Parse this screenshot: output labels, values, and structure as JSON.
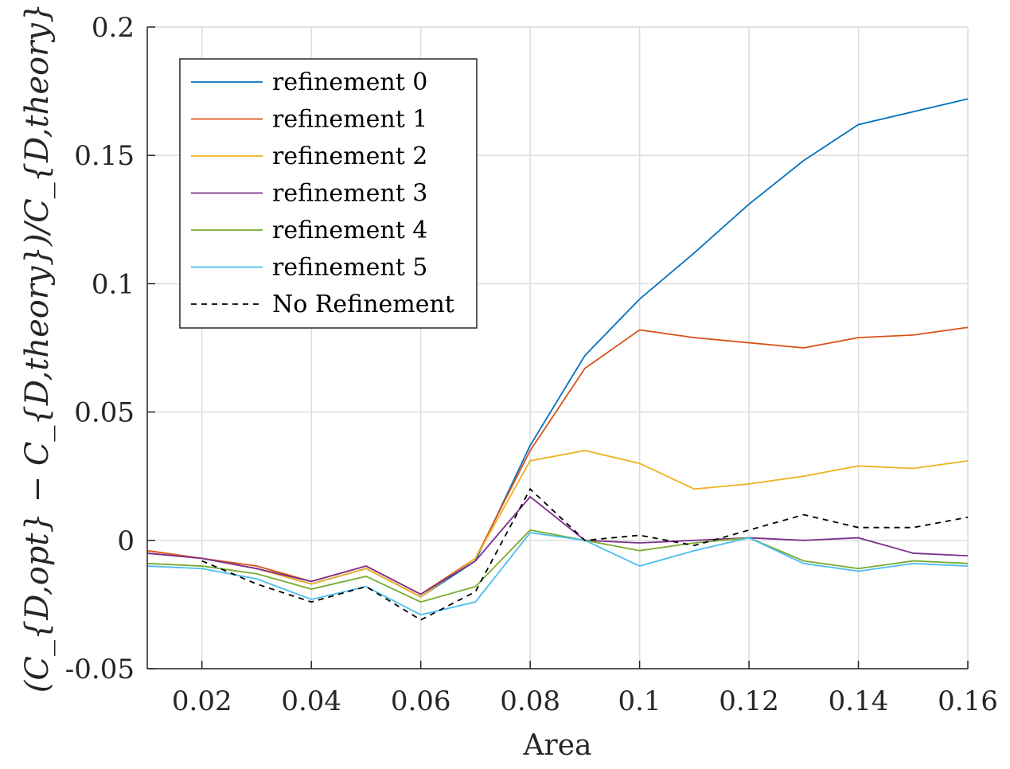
{
  "chart_data": {
    "type": "line",
    "xlabel": "Area",
    "ylabel": "(C_{D,opt} − C_{D,theory})/C_{D,theory}",
    "xlim": [
      0.01,
      0.16
    ],
    "ylim": [
      -0.05,
      0.2
    ],
    "grid": true,
    "legend_position": "top-left",
    "x_ticks": [
      0.02,
      0.04,
      0.06,
      0.08,
      0.1,
      0.12,
      0.14,
      0.16
    ],
    "x_tick_labels": [
      "0.02",
      "0.04",
      "0.06",
      "0.08",
      "0.1",
      "0.12",
      "0.14",
      "0.16"
    ],
    "y_ticks": [
      -0.05,
      0,
      0.05,
      0.1,
      0.15,
      0.2
    ],
    "y_tick_labels": [
      "-0.05",
      "0",
      "0.05",
      "0.1",
      "0.15",
      "0.2"
    ],
    "x": [
      0.01,
      0.02,
      0.03,
      0.04,
      0.05,
      0.06,
      0.07,
      0.08,
      0.09,
      0.1,
      0.11,
      0.12,
      0.13,
      0.14,
      0.15,
      0.16
    ],
    "series": [
      {
        "name": "refinement 0",
        "color": "#0072BD",
        "dash": "solid",
        "values": [
          -0.005,
          -0.007,
          -0.011,
          -0.017,
          -0.011,
          -0.022,
          -0.008,
          0.037,
          0.072,
          0.094,
          0.112,
          0.131,
          0.148,
          0.162,
          0.167,
          0.172
        ]
      },
      {
        "name": "refinement 1",
        "color": "#D95319",
        "dash": "solid",
        "values": [
          -0.004,
          -0.007,
          -0.01,
          -0.016,
          -0.01,
          -0.021,
          -0.007,
          0.035,
          0.067,
          0.082,
          0.079,
          0.077,
          0.075,
          0.079,
          0.08,
          0.083
        ]
      },
      {
        "name": "refinement 2",
        "color": "#EDB120",
        "dash": "solid",
        "values": [
          -0.005,
          -0.007,
          -0.011,
          -0.017,
          -0.011,
          -0.022,
          -0.007,
          0.031,
          0.035,
          0.03,
          0.02,
          0.022,
          0.025,
          0.029,
          0.028,
          0.031
        ]
      },
      {
        "name": "refinement 3",
        "color": "#7E2F8E",
        "dash": "solid",
        "values": [
          -0.005,
          -0.007,
          -0.011,
          -0.016,
          -0.01,
          -0.021,
          -0.008,
          0.017,
          0.0,
          -0.001,
          -0.0,
          0.001,
          0.0,
          0.001,
          -0.005,
          -0.006
        ]
      },
      {
        "name": "refinement 4",
        "color": "#77AC30",
        "dash": "solid",
        "values": [
          -0.009,
          -0.01,
          -0.013,
          -0.019,
          -0.014,
          -0.024,
          -0.018,
          0.004,
          -0.0,
          -0.004,
          -0.001,
          0.001,
          -0.008,
          -0.011,
          -0.008,
          -0.009
        ]
      },
      {
        "name": "refinement 5",
        "color": "#4DBEEE",
        "dash": "solid",
        "values": [
          -0.01,
          -0.011,
          -0.015,
          -0.023,
          -0.018,
          -0.029,
          -0.024,
          0.003,
          -0.0,
          -0.01,
          -0.004,
          0.001,
          -0.009,
          -0.012,
          -0.009,
          -0.01
        ]
      },
      {
        "name": "No Refinement",
        "color": "#000000",
        "dash": "dashed",
        "values": [
          null,
          -0.008,
          -0.017,
          -0.024,
          -0.018,
          -0.031,
          -0.02,
          0.02,
          0.0,
          0.002,
          -0.002,
          0.004,
          0.01,
          0.005,
          0.005,
          0.009
        ]
      }
    ]
  }
}
